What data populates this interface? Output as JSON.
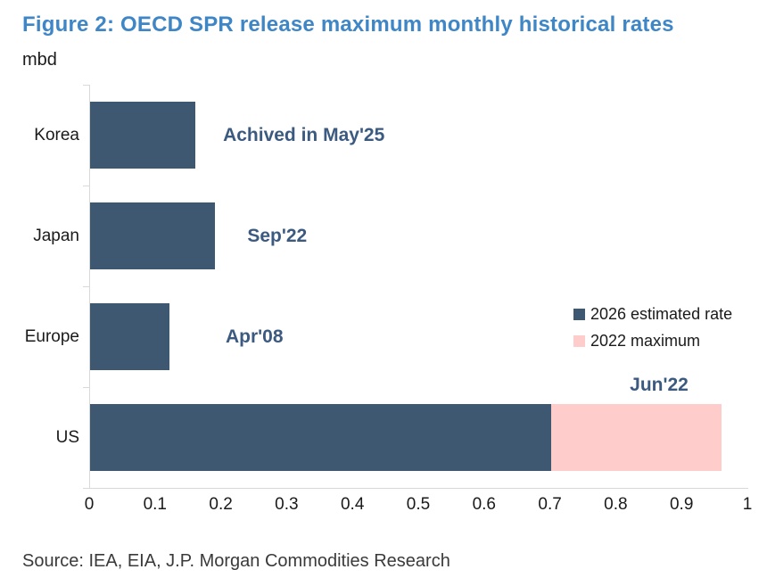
{
  "title": "Figure 2: OECD SPR release maximum monthly historical rates",
  "unit_label": "mbd",
  "source": "Source: IEA, EIA, J.P. Morgan Commodities Research",
  "colors": {
    "title": "#3E86C6",
    "bar_primary": "#3E5872",
    "bar_secondary": "#FFCCCC",
    "annotation": "#3C5A80",
    "axis": "#D9D9D9"
  },
  "chart_data": {
    "type": "bar",
    "orientation": "horizontal",
    "title": "Figure 2: OECD SPR release maximum monthly historical rates",
    "ylabel": "mbd",
    "xlabel": "",
    "xlim": [
      0,
      1
    ],
    "xticks": [
      0,
      0.1,
      0.2,
      0.3,
      0.4,
      0.5,
      0.6,
      0.7,
      0.8,
      0.9,
      1
    ],
    "xtick_labels": [
      "0",
      "0.1",
      "0.2",
      "0.3",
      "0.4",
      "0.5",
      "0.6",
      "0.7",
      "0.8",
      "0.9",
      "1"
    ],
    "grid": false,
    "categories": [
      "Korea",
      "Japan",
      "Europe",
      "US"
    ],
    "series": [
      {
        "name": "2026 estimated rate",
        "color": "#3E5872",
        "values": [
          0.16,
          0.19,
          0.12,
          0.7
        ]
      },
      {
        "name": "2022 maximum",
        "color": "#FFCCCC",
        "values": [
          0,
          0,
          0,
          0.26
        ]
      }
    ],
    "stacked_totals": [
      0.16,
      0.19,
      0.12,
      0.96
    ],
    "annotations": [
      {
        "category": "Korea",
        "text": "Achived in May'25",
        "x": 0.202,
        "placement": "middle"
      },
      {
        "category": "Japan",
        "text": "Sep'22",
        "x": 0.239,
        "placement": "middle"
      },
      {
        "category": "Europe",
        "text": "Apr'08",
        "x": 0.206,
        "placement": "middle"
      },
      {
        "category": "US",
        "text": "Jun'22",
        "x": 0.82,
        "placement": "above"
      }
    ],
    "legend": {
      "position": "right",
      "entries": [
        {
          "label": "2026 estimated rate",
          "color": "#3E5872"
        },
        {
          "label": "2022 maximum",
          "color": "#FFCCCC"
        }
      ]
    }
  }
}
